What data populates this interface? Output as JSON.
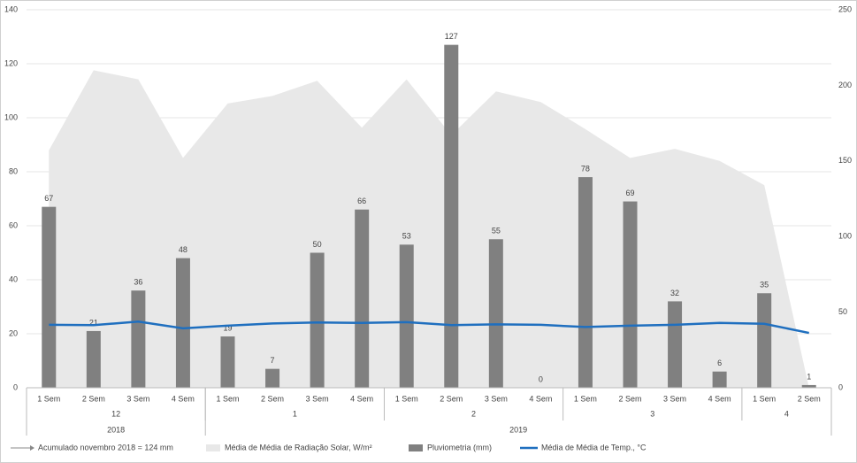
{
  "chart_data": {
    "type": "combo",
    "categories": [
      "1 Sem",
      "2 Sem",
      "3 Sem",
      "4 Sem",
      "1 Sem",
      "2 Sem",
      "3 Sem",
      "4 Sem",
      "1 Sem",
      "2 Sem",
      "3 Sem",
      "4 Sem",
      "1 Sem",
      "2 Sem",
      "3 Sem",
      "4 Sem",
      "1 Sem",
      "2 Sem"
    ],
    "month": [
      "12",
      "12",
      "12",
      "12",
      "1",
      "1",
      "1",
      "1",
      "2",
      "2",
      "2",
      "2",
      "3",
      "3",
      "3",
      "3",
      "4",
      "4"
    ],
    "year": [
      "2018",
      "2018",
      "2018",
      "2018",
      "2019",
      "2019",
      "2019",
      "2019",
      "2019",
      "2019",
      "2019",
      "2019",
      "2019",
      "2019",
      "2019",
      "2019",
      "2019",
      "2019"
    ],
    "series": [
      {
        "name": "Média de Média de Radiação Solar, W/m²",
        "type": "area",
        "axis": "y2",
        "color": "#e8e8e8",
        "values": [
          157,
          210,
          204,
          152,
          188,
          193,
          203,
          172,
          204,
          167,
          196,
          189,
          171,
          152,
          158,
          150,
          134,
          0
        ]
      },
      {
        "name": "Pluviometria (mm)",
        "type": "bar",
        "color": "#808080",
        "values": [
          67,
          21,
          36,
          48,
          19,
          7,
          50,
          66,
          53,
          127,
          55,
          0,
          78,
          69,
          32,
          6,
          35,
          1
        ]
      },
      {
        "name": "Média de Média de Temp., °C",
        "type": "line",
        "color": "#1f6fbf",
        "values": [
          23.3,
          23.2,
          24.5,
          22,
          23,
          23.8,
          24.2,
          24,
          24.3,
          23.2,
          23.5,
          23.3,
          22.5,
          23,
          23.3,
          24,
          23.7,
          20.3
        ]
      }
    ],
    "ylim": [
      0,
      140
    ],
    "yticks": [
      0,
      20,
      40,
      60,
      80,
      100,
      120,
      140
    ],
    "y2lim": [
      0,
      250
    ],
    "y2ticks": [
      0,
      50,
      100,
      150,
      200,
      250
    ],
    "grid": true,
    "annotation": "Acumulado novembro 2018 = 124 mm"
  }
}
